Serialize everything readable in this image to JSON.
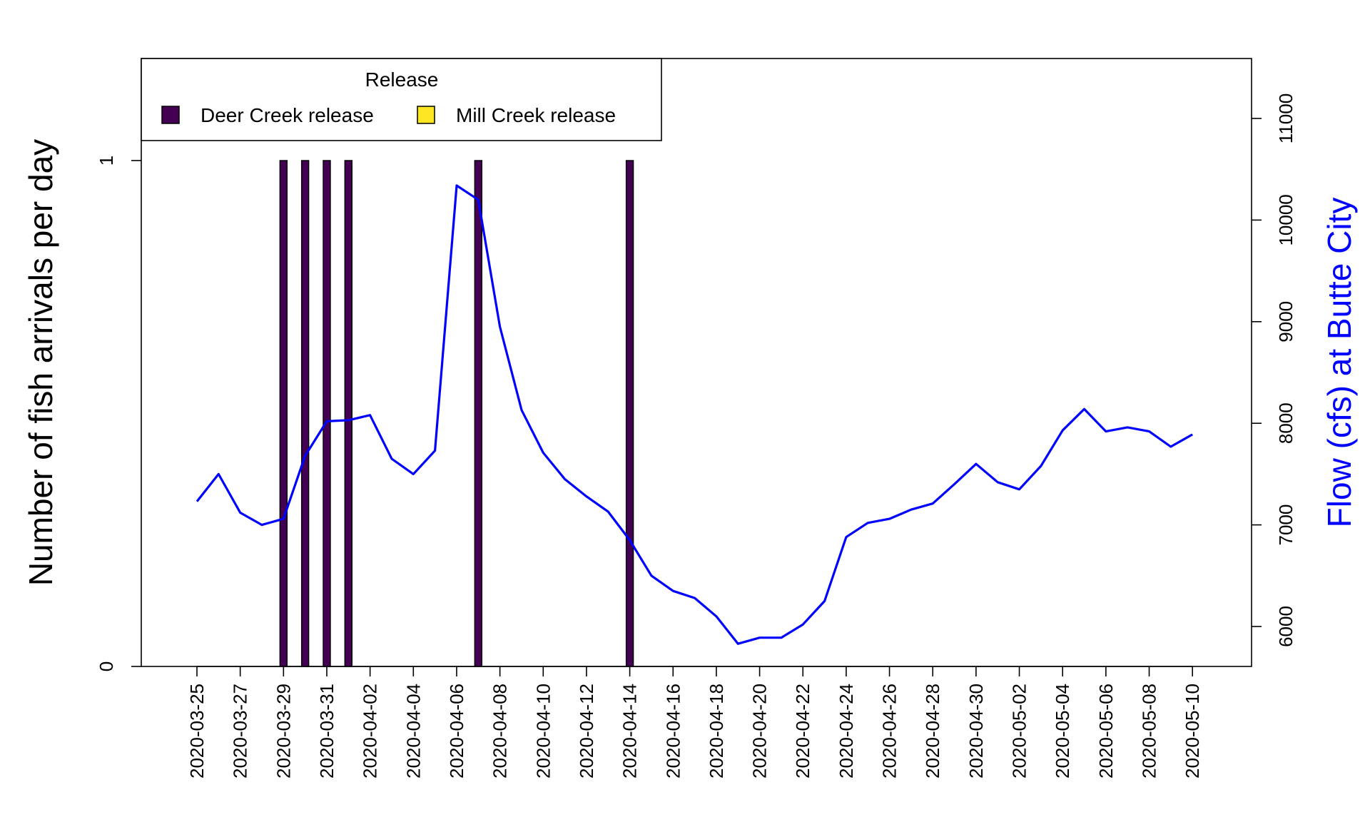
{
  "chart_data": {
    "type": "bar",
    "ylabel": "Number of fish arrivals per day",
    "y2label": "Flow (cfs) at Butte City",
    "ylim": [
      0,
      1.2
    ],
    "y_ticks": [
      0,
      1
    ],
    "y2_ticks": [
      6000,
      7000,
      8000,
      9000,
      10000,
      11000
    ],
    "x_range": [
      "2020-03-25",
      "2020-05-10"
    ],
    "x_tick_labels": [
      "2020-03-25",
      "2020-03-27",
      "2020-03-29",
      "2020-03-31",
      "2020-04-02",
      "2020-04-04",
      "2020-04-06",
      "2020-04-08",
      "2020-04-10",
      "2020-04-12",
      "2020-04-14",
      "2020-04-16",
      "2020-04-18",
      "2020-04-20",
      "2020-04-22",
      "2020-04-24",
      "2020-04-26",
      "2020-04-28",
      "2020-04-30",
      "2020-05-02",
      "2020-05-04",
      "2020-05-06",
      "2020-05-08",
      "2020-05-10"
    ],
    "legend": {
      "title": "Release",
      "placement": "top-left",
      "entries": [
        {
          "name": "Deer Creek release",
          "color": "#440154"
        },
        {
          "name": "Mill Creek release",
          "color": "#FDE725"
        }
      ]
    },
    "series": [
      {
        "name": "Deer Creek release",
        "type": "bar",
        "color": "#440154",
        "points": [
          {
            "x": "2020-03-29",
            "y": 1
          },
          {
            "x": "2020-03-30",
            "y": 1
          },
          {
            "x": "2020-03-31",
            "y": 1
          },
          {
            "x": "2020-04-01",
            "y": 1
          },
          {
            "x": "2020-04-07",
            "y": 1
          },
          {
            "x": "2020-04-14",
            "y": 1
          }
        ]
      },
      {
        "name": "Flow (cfs) at Butte City",
        "type": "line",
        "axis": "right",
        "color": "#0000FF",
        "points": [
          {
            "x": "2020-03-25",
            "y": 7230
          },
          {
            "x": "2020-03-26",
            "y": 7500
          },
          {
            "x": "2020-03-27",
            "y": 7120
          },
          {
            "x": "2020-03-28",
            "y": 7000
          },
          {
            "x": "2020-03-29",
            "y": 7060
          },
          {
            "x": "2020-03-30",
            "y": 7680
          },
          {
            "x": "2020-03-31",
            "y": 8020
          },
          {
            "x": "2020-04-01",
            "y": 8030
          },
          {
            "x": "2020-04-02",
            "y": 8080
          },
          {
            "x": "2020-04-03",
            "y": 7650
          },
          {
            "x": "2020-04-04",
            "y": 7500
          },
          {
            "x": "2020-04-05",
            "y": 7730
          },
          {
            "x": "2020-04-06",
            "y": 10340
          },
          {
            "x": "2020-04-07",
            "y": 10200
          },
          {
            "x": "2020-04-08",
            "y": 8950
          },
          {
            "x": "2020-04-09",
            "y": 8130
          },
          {
            "x": "2020-04-10",
            "y": 7710
          },
          {
            "x": "2020-04-11",
            "y": 7450
          },
          {
            "x": "2020-04-12",
            "y": 7280
          },
          {
            "x": "2020-04-13",
            "y": 7130
          },
          {
            "x": "2020-04-14",
            "y": 6850
          },
          {
            "x": "2020-04-15",
            "y": 6500
          },
          {
            "x": "2020-04-16",
            "y": 6350
          },
          {
            "x": "2020-04-17",
            "y": 6280
          },
          {
            "x": "2020-04-18",
            "y": 6100
          },
          {
            "x": "2020-04-19",
            "y": 5830
          },
          {
            "x": "2020-04-20",
            "y": 5890
          },
          {
            "x": "2020-04-21",
            "y": 5890
          },
          {
            "x": "2020-04-22",
            "y": 6020
          },
          {
            "x": "2020-04-23",
            "y": 6250
          },
          {
            "x": "2020-04-24",
            "y": 6880
          },
          {
            "x": "2020-04-25",
            "y": 7020
          },
          {
            "x": "2020-04-26",
            "y": 7060
          },
          {
            "x": "2020-04-27",
            "y": 7150
          },
          {
            "x": "2020-04-28",
            "y": 7210
          },
          {
            "x": "2020-04-29",
            "y": 7400
          },
          {
            "x": "2020-04-30",
            "y": 7600
          },
          {
            "x": "2020-05-01",
            "y": 7420
          },
          {
            "x": "2020-05-02",
            "y": 7350
          },
          {
            "x": "2020-05-03",
            "y": 7580
          },
          {
            "x": "2020-05-04",
            "y": 7930
          },
          {
            "x": "2020-05-05",
            "y": 8140
          },
          {
            "x": "2020-05-06",
            "y": 7920
          },
          {
            "x": "2020-05-07",
            "y": 7960
          },
          {
            "x": "2020-05-08",
            "y": 7920
          },
          {
            "x": "2020-05-09",
            "y": 7770
          },
          {
            "x": "2020-05-10",
            "y": 7890
          }
        ]
      }
    ]
  }
}
